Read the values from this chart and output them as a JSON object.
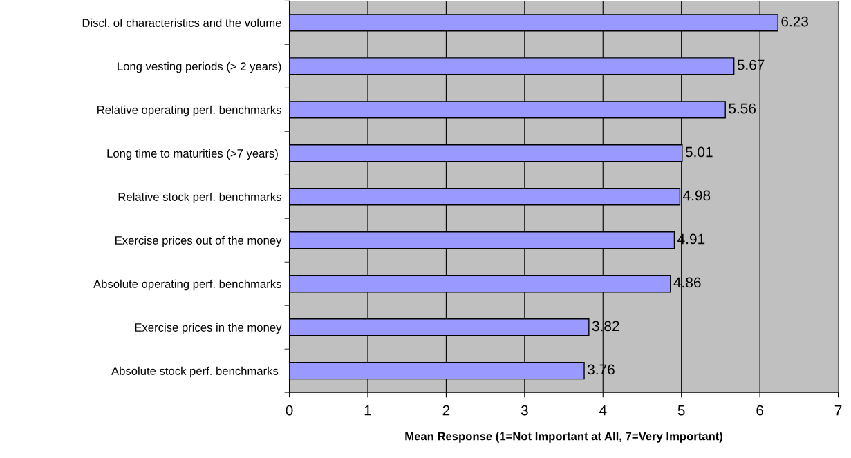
{
  "chart_data": {
    "type": "bar",
    "orientation": "horizontal",
    "xlabel": "Mean Response (1=Not Important at All, 7=Very Important)",
    "categories": [
      "Discl. of characteristics and the volume",
      "Long vesting periods (> 2 years)",
      "Relative operating perf. benchmarks",
      "Long time to maturities (>7 years) ",
      "Relative stock perf. benchmarks",
      "Exercise prices out of the money",
      "Absolute operating perf. benchmarks",
      "Exercise prices in the money",
      "Absolute stock perf. benchmarks "
    ],
    "values": [
      6.23,
      5.67,
      5.56,
      5.01,
      4.98,
      4.91,
      4.86,
      3.82,
      3.76
    ],
    "color": "#9999ff",
    "xlim": [
      0,
      7
    ],
    "xticks": [
      0,
      1,
      2,
      3,
      4,
      5,
      6,
      7
    ],
    "grid": "x",
    "data_labels": true
  }
}
